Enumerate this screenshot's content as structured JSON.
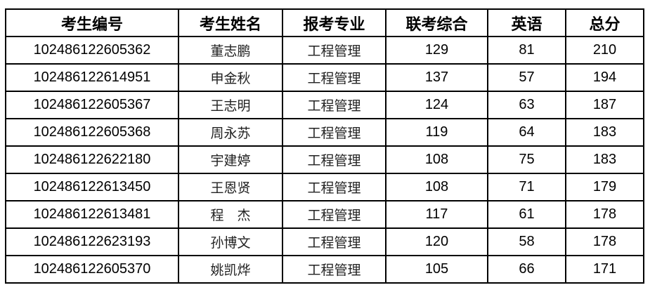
{
  "table": {
    "headers": [
      "考生编号",
      "考生姓名",
      "报考专业",
      "联考综合",
      "英语",
      "总分"
    ],
    "rows": [
      [
        "102486122605362",
        "董志鹏",
        "工程管理",
        "129",
        "81",
        "210"
      ],
      [
        "102486122614951",
        "申金秋",
        "工程管理",
        "137",
        "57",
        "194"
      ],
      [
        "102486122605367",
        "王志明",
        "工程管理",
        "124",
        "63",
        "187"
      ],
      [
        "102486122605368",
        "周永苏",
        "工程管理",
        "119",
        "64",
        "183"
      ],
      [
        "102486122622180",
        "宇建婷",
        "工程管理",
        "108",
        "75",
        "183"
      ],
      [
        "102486122613450",
        "王恩贤",
        "工程管理",
        "108",
        "71",
        "179"
      ],
      [
        "102486122613481",
        "程　杰",
        "工程管理",
        "117",
        "61",
        "178"
      ],
      [
        "102486122623193",
        "孙博文",
        "工程管理",
        "120",
        "58",
        "178"
      ],
      [
        "102486122605370",
        "姚凯烨",
        "工程管理",
        "105",
        "66",
        "171"
      ]
    ]
  }
}
